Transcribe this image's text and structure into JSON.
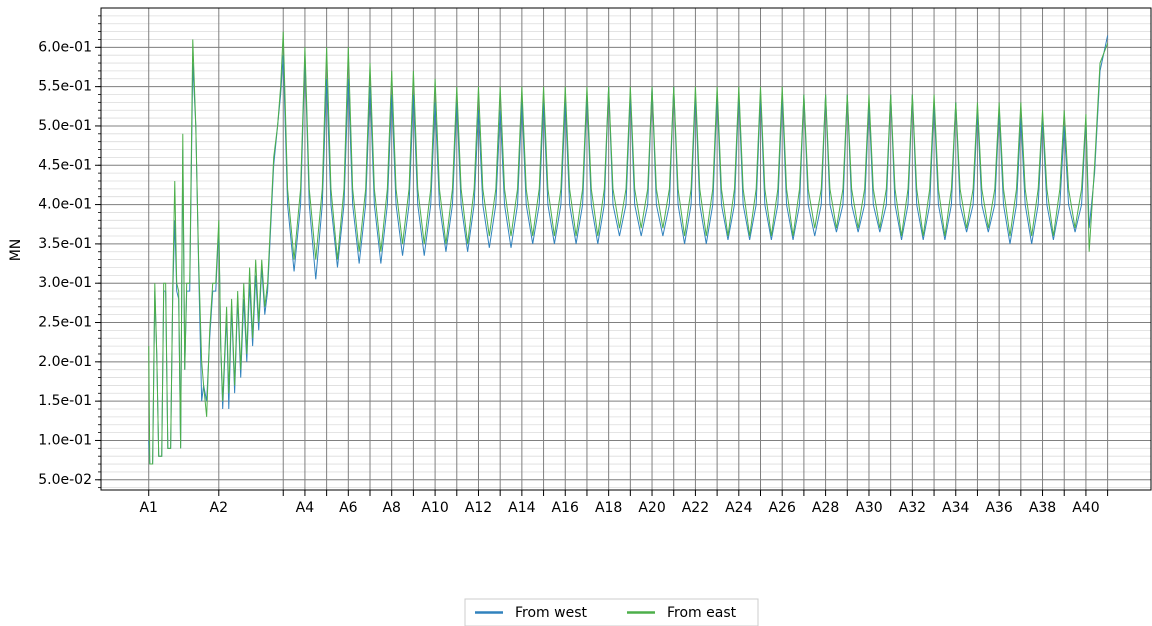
{
  "chart_data": {
    "type": "line",
    "ylabel": "MN",
    "grid": true,
    "legend": "lower center",
    "xlim": [
      -2.2,
      46.2
    ],
    "ylim": [
      0.037,
      0.65
    ],
    "xticks": [
      {
        "value": 0,
        "label": "A1"
      },
      {
        "value": 3.23,
        "label": "A2"
      },
      {
        "value": 6.2,
        "label": null
      },
      {
        "value": 7.2,
        "label": "A4"
      },
      {
        "value": 8.2,
        "label": null
      },
      {
        "value": 9.2,
        "label": "A6"
      },
      {
        "value": 10.2,
        "label": null
      },
      {
        "value": 11.2,
        "label": "A8"
      },
      {
        "value": 12.2,
        "label": null
      },
      {
        "value": 13.2,
        "label": "A10"
      },
      {
        "value": 14.2,
        "label": null
      },
      {
        "value": 15.2,
        "label": "A12"
      },
      {
        "value": 16.2,
        "label": null
      },
      {
        "value": 17.2,
        "label": "A14"
      },
      {
        "value": 18.2,
        "label": null
      },
      {
        "value": 19.2,
        "label": "A16"
      },
      {
        "value": 20.2,
        "label": null
      },
      {
        "value": 21.2,
        "label": "A18"
      },
      {
        "value": 22.2,
        "label": null
      },
      {
        "value": 23.2,
        "label": "A20"
      },
      {
        "value": 24.2,
        "label": null
      },
      {
        "value": 25.2,
        "label": "A22"
      },
      {
        "value": 26.2,
        "label": null
      },
      {
        "value": 27.2,
        "label": "A24"
      },
      {
        "value": 28.2,
        "label": null
      },
      {
        "value": 29.2,
        "label": "A26"
      },
      {
        "value": 30.2,
        "label": null
      },
      {
        "value": 31.2,
        "label": "A28"
      },
      {
        "value": 32.2,
        "label": null
      },
      {
        "value": 33.2,
        "label": "A30"
      },
      {
        "value": 34.2,
        "label": null
      },
      {
        "value": 35.2,
        "label": "A32"
      },
      {
        "value": 36.2,
        "label": null
      },
      {
        "value": 37.2,
        "label": "A34"
      },
      {
        "value": 38.2,
        "label": null
      },
      {
        "value": 39.2,
        "label": "A36"
      },
      {
        "value": 40.2,
        "label": null
      },
      {
        "value": 41.2,
        "label": "A38"
      },
      {
        "value": 42.2,
        "label": null
      },
      {
        "value": 43.2,
        "label": "A40"
      },
      {
        "value": 44.2,
        "label": null
      }
    ],
    "yticks": [
      {
        "value": 0.05,
        "label": "5.0e-02"
      },
      {
        "value": 0.1,
        "label": "1.0e-01"
      },
      {
        "value": 0.15,
        "label": "1.5e-01"
      },
      {
        "value": 0.2,
        "label": "2.0e-01"
      },
      {
        "value": 0.25,
        "label": "2.5e-01"
      },
      {
        "value": 0.3,
        "label": "3.0e-01"
      },
      {
        "value": 0.35,
        "label": "3.5e-01"
      },
      {
        "value": 0.4,
        "label": "4.0e-01"
      },
      {
        "value": 0.45,
        "label": "4.5e-01"
      },
      {
        "value": 0.5,
        "label": "5.0e-01"
      },
      {
        "value": 0.55,
        "label": "5.5e-01"
      },
      {
        "value": 0.6,
        "label": "6.0e-01"
      }
    ],
    "yminorticks": [
      0.04,
      0.05,
      0.06,
      0.07,
      0.08,
      0.09,
      0.1,
      0.11,
      0.12,
      0.13,
      0.14,
      0.15,
      0.16,
      0.17,
      0.18,
      0.19,
      0.2,
      0.21,
      0.22,
      0.23,
      0.24,
      0.25,
      0.26,
      0.27,
      0.28,
      0.29,
      0.3,
      0.31,
      0.32,
      0.33,
      0.34,
      0.35,
      0.36,
      0.37,
      0.38,
      0.39,
      0.4,
      0.41,
      0.42,
      0.43,
      0.44,
      0.45,
      0.46,
      0.47,
      0.48,
      0.49,
      0.5,
      0.51,
      0.52,
      0.53,
      0.54,
      0.55,
      0.56,
      0.57,
      0.58,
      0.59,
      0.6,
      0.61,
      0.62,
      0.63,
      0.64
    ],
    "x": [
      0,
      0.05,
      0.18,
      0.28,
      0.37,
      0.46,
      0.6,
      0.69,
      0.78,
      0.88,
      1.01,
      1.11,
      1.2,
      1.29,
      1.38,
      1.47,
      1.57,
      1.66,
      1.75,
      1.89,
      2.03,
      2.17,
      2.3,
      2.44,
      2.53,
      2.67,
      2.81,
      2.95,
      3.09,
      3.23,
      3.32,
      3.41,
      3.59,
      3.69,
      3.82,
      3.96,
      4.1,
      4.24,
      4.38,
      4.52,
      4.65,
      4.79,
      4.93,
      5.07,
      5.21,
      5.35,
      5.48,
      5.62,
      5.76,
      5.94,
      6.08,
      6.2,
      6.4,
      6.7,
      7,
      7.2,
      7.4,
      7.7,
      8,
      8.2,
      8.4,
      8.7,
      9,
      9.2,
      9.4,
      9.7,
      10,
      10.2,
      10.4,
      10.7,
      11,
      11.2,
      11.4,
      11.7,
      12,
      12.2,
      12.4,
      12.7,
      13,
      13.2,
      13.4,
      13.7,
      14,
      14.2,
      14.4,
      14.7,
      15,
      15.2,
      15.4,
      15.7,
      16,
      16.2,
      16.4,
      16.7,
      17,
      17.2,
      17.4,
      17.7,
      18,
      18.2,
      18.4,
      18.7,
      19,
      19.2,
      19.4,
      19.7,
      20,
      20.2,
      20.4,
      20.7,
      21,
      21.2,
      21.4,
      21.7,
      22,
      22.2,
      22.4,
      22.7,
      23,
      23.2,
      23.4,
      23.7,
      24,
      24.2,
      24.4,
      24.7,
      25,
      25.2,
      25.4,
      25.7,
      26,
      26.2,
      26.4,
      26.7,
      27,
      27.2,
      27.4,
      27.7,
      28,
      28.2,
      28.4,
      28.7,
      29,
      29.2,
      29.4,
      29.7,
      30,
      30.2,
      30.4,
      30.7,
      31,
      31.2,
      31.4,
      31.7,
      32,
      32.2,
      32.4,
      32.7,
      33,
      33.2,
      33.4,
      33.7,
      34,
      34.2,
      34.4,
      34.7,
      35,
      35.2,
      35.4,
      35.7,
      36,
      36.2,
      36.4,
      36.7,
      37,
      37.2,
      37.4,
      37.7,
      38,
      38.2,
      38.4,
      38.7,
      39,
      39.2,
      39.4,
      39.7,
      40,
      40.2,
      40.4,
      40.7,
      41,
      41.2,
      41.4,
      41.7,
      42,
      42.2,
      42.4,
      42.7,
      43,
      43.2,
      43.35,
      43.6,
      43.85,
      44.2
    ],
    "series": [
      {
        "name": "From west",
        "color": "#3182bd",
        "values": [
          0.1,
          0.07,
          0.07,
          0.29,
          0.21,
          0.08,
          0.08,
          0.29,
          0.29,
          0.09,
          0.09,
          0.29,
          0.38,
          0.29,
          0.28,
          0.09,
          0.47,
          0.19,
          0.29,
          0.29,
          0.58,
          0.5,
          0.32,
          0.15,
          0.17,
          0.15,
          0.23,
          0.29,
          0.29,
          0.37,
          0.22,
          0.14,
          0.26,
          0.14,
          0.27,
          0.16,
          0.28,
          0.18,
          0.28,
          0.2,
          0.3,
          0.22,
          0.31,
          0.24,
          0.32,
          0.26,
          0.29,
          0.37,
          0.45,
          0.5,
          0.54,
          0.59,
          0.4,
          0.315,
          0.4,
          0.59,
          0.4,
          0.305,
          0.4,
          0.56,
          0.4,
          0.32,
          0.4,
          0.56,
          0.4,
          0.325,
          0.4,
          0.55,
          0.4,
          0.325,
          0.4,
          0.54,
          0.4,
          0.335,
          0.4,
          0.54,
          0.4,
          0.335,
          0.4,
          0.53,
          0.4,
          0.34,
          0.4,
          0.53,
          0.4,
          0.34,
          0.4,
          0.52,
          0.4,
          0.345,
          0.4,
          0.52,
          0.4,
          0.345,
          0.4,
          0.53,
          0.4,
          0.35,
          0.4,
          0.53,
          0.4,
          0.35,
          0.4,
          0.53,
          0.4,
          0.35,
          0.4,
          0.54,
          0.4,
          0.35,
          0.4,
          0.55,
          0.4,
          0.36,
          0.4,
          0.54,
          0.4,
          0.36,
          0.4,
          0.55,
          0.4,
          0.36,
          0.4,
          0.55,
          0.4,
          0.35,
          0.4,
          0.54,
          0.4,
          0.35,
          0.4,
          0.54,
          0.4,
          0.355,
          0.4,
          0.54,
          0.4,
          0.355,
          0.4,
          0.54,
          0.4,
          0.355,
          0.4,
          0.54,
          0.4,
          0.355,
          0.4,
          0.54,
          0.4,
          0.36,
          0.4,
          0.54,
          0.4,
          0.365,
          0.4,
          0.54,
          0.4,
          0.365,
          0.4,
          0.53,
          0.4,
          0.365,
          0.4,
          0.54,
          0.4,
          0.355,
          0.4,
          0.54,
          0.4,
          0.355,
          0.4,
          0.53,
          0.4,
          0.355,
          0.4,
          0.53,
          0.4,
          0.365,
          0.4,
          0.52,
          0.4,
          0.365,
          0.4,
          0.52,
          0.4,
          0.35,
          0.4,
          0.51,
          0.4,
          0.35,
          0.4,
          0.51,
          0.4,
          0.355,
          0.4,
          0.5,
          0.4,
          0.365,
          0.4,
          0.51,
          0.37,
          0.44,
          0.57,
          0.615
        ]
      },
      {
        "name": "From east",
        "color": "#4daf4a",
        "values": [
          0.22,
          0.07,
          0.07,
          0.3,
          0.21,
          0.08,
          0.08,
          0.3,
          0.3,
          0.09,
          0.09,
          0.3,
          0.43,
          0.3,
          0.29,
          0.09,
          0.49,
          0.19,
          0.3,
          0.3,
          0.61,
          0.5,
          0.33,
          0.2,
          0.17,
          0.13,
          0.24,
          0.3,
          0.3,
          0.38,
          0.22,
          0.15,
          0.27,
          0.16,
          0.28,
          0.17,
          0.29,
          0.19,
          0.3,
          0.21,
          0.32,
          0.23,
          0.33,
          0.25,
          0.33,
          0.27,
          0.3,
          0.38,
          0.46,
          0.5,
          0.55,
          0.62,
          0.42,
          0.33,
          0.42,
          0.6,
          0.42,
          0.33,
          0.42,
          0.6,
          0.42,
          0.33,
          0.42,
          0.6,
          0.42,
          0.34,
          0.42,
          0.58,
          0.42,
          0.34,
          0.42,
          0.57,
          0.42,
          0.35,
          0.42,
          0.57,
          0.42,
          0.35,
          0.42,
          0.56,
          0.42,
          0.35,
          0.42,
          0.55,
          0.42,
          0.35,
          0.42,
          0.55,
          0.42,
          0.36,
          0.42,
          0.55,
          0.42,
          0.36,
          0.42,
          0.55,
          0.42,
          0.36,
          0.42,
          0.55,
          0.42,
          0.36,
          0.42,
          0.55,
          0.42,
          0.36,
          0.42,
          0.55,
          0.42,
          0.36,
          0.42,
          0.55,
          0.42,
          0.37,
          0.42,
          0.55,
          0.42,
          0.37,
          0.42,
          0.55,
          0.42,
          0.37,
          0.42,
          0.55,
          0.42,
          0.36,
          0.42,
          0.55,
          0.42,
          0.36,
          0.42,
          0.55,
          0.42,
          0.36,
          0.42,
          0.55,
          0.42,
          0.36,
          0.42,
          0.55,
          0.42,
          0.36,
          0.42,
          0.55,
          0.42,
          0.36,
          0.42,
          0.54,
          0.42,
          0.37,
          0.42,
          0.54,
          0.42,
          0.37,
          0.42,
          0.54,
          0.42,
          0.37,
          0.42,
          0.54,
          0.42,
          0.37,
          0.42,
          0.54,
          0.42,
          0.36,
          0.42,
          0.54,
          0.42,
          0.36,
          0.42,
          0.54,
          0.42,
          0.36,
          0.42,
          0.53,
          0.42,
          0.37,
          0.42,
          0.53,
          0.42,
          0.37,
          0.42,
          0.53,
          0.42,
          0.36,
          0.42,
          0.53,
          0.42,
          0.36,
          0.42,
          0.52,
          0.42,
          0.36,
          0.42,
          0.52,
          0.42,
          0.37,
          0.42,
          0.515,
          0.34,
          0.45,
          0.58,
          0.605
        ]
      }
    ]
  }
}
